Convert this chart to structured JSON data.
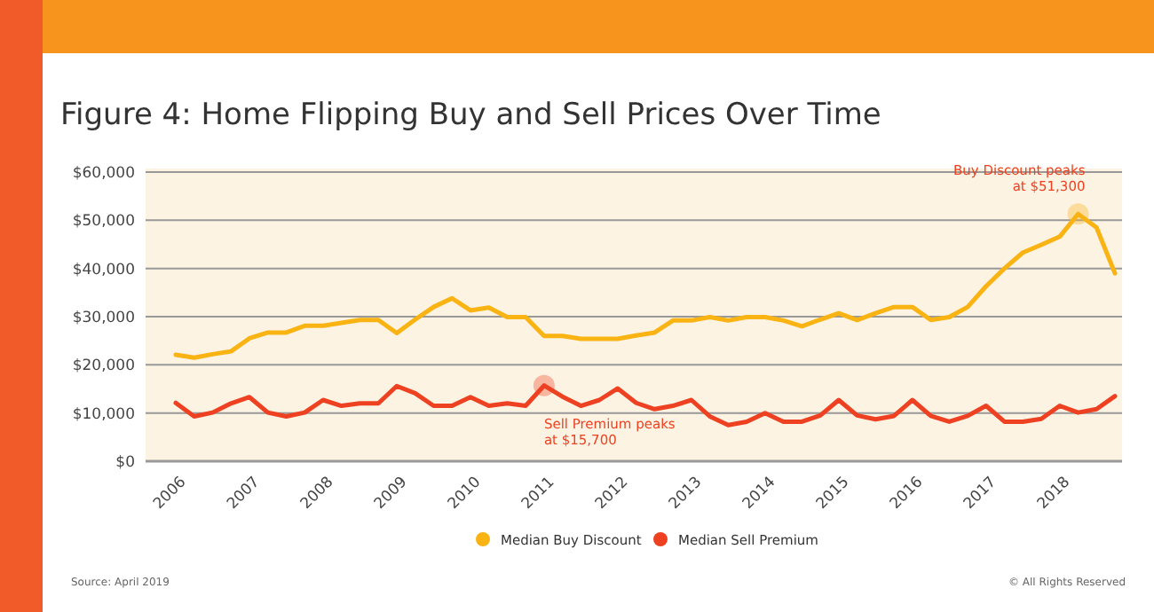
{
  "chart_data": {
    "type": "line",
    "title": "Figure 4: Home Flipping Buy and Sell Prices Over Time",
    "categories": [
      "2006",
      null,
      null,
      null,
      "2007",
      null,
      null,
      null,
      "2008",
      null,
      null,
      null,
      "2009",
      null,
      null,
      null,
      "2010",
      null,
      null,
      null,
      "2011",
      null,
      null,
      null,
      "2012",
      null,
      null,
      null,
      "2013",
      null,
      null,
      null,
      "2014",
      null,
      null,
      null,
      "2015",
      null,
      null,
      null,
      "2016",
      null,
      null,
      null,
      "2017",
      null,
      null,
      null,
      "2018",
      null,
      null,
      null
    ],
    "series": [
      {
        "name": "Median Buy Discount",
        "color": "#f9b313",
        "values": [
          22100,
          21500,
          22200,
          22800,
          25500,
          26700,
          26700,
          28100,
          28100,
          28700,
          29300,
          29300,
          26600,
          29400,
          32000,
          33800,
          31300,
          31900,
          29900,
          29900,
          26000,
          26000,
          25400,
          25400,
          25400,
          26100,
          26700,
          29200,
          29200,
          29900,
          29200,
          29900,
          29900,
          29200,
          28000,
          29400,
          30700,
          29300,
          30700,
          32000,
          32000,
          29300,
          29900,
          32000,
          36300,
          40000,
          43300,
          44900,
          46600,
          51300,
          48500,
          39000
        ]
      },
      {
        "name": "Median Sell Premium",
        "color": "#ee4122",
        "values": [
          12100,
          9300,
          10100,
          12000,
          13300,
          10100,
          9300,
          10100,
          12700,
          11500,
          12000,
          12000,
          15600,
          14100,
          11500,
          11500,
          13300,
          11500,
          12000,
          11500,
          15700,
          13400,
          11500,
          12700,
          15100,
          12100,
          10800,
          11500,
          12700,
          9300,
          7500,
          8200,
          10000,
          8200,
          8200,
          9500,
          12700,
          9500,
          8700,
          9400,
          12700,
          9400,
          8200,
          9400,
          11500,
          8200,
          8200,
          8800,
          11500,
          10100,
          10800,
          13500
        ]
      }
    ],
    "ylim": [
      0,
      60000
    ],
    "yticks": [
      {
        "value": 0,
        "label": "$0"
      },
      {
        "value": 10000,
        "label": "$10,000"
      },
      {
        "value": 20000,
        "label": "$20,000"
      },
      {
        "value": 30000,
        "label": "$30,000"
      },
      {
        "value": 40000,
        "label": "$40,000"
      },
      {
        "value": 50000,
        "label": "$50,000"
      },
      {
        "value": 60000,
        "label": "$60,000"
      }
    ],
    "grid": "y",
    "legend": "bottom",
    "marker": "none",
    "line_style": "solid",
    "annotations": [
      "Buy Discount peaks\nat $51,300",
      "Sell Premium peaks\nat $15,700",
      "Source: April 2019",
      "© All Rights Reserved"
    ]
  }
}
